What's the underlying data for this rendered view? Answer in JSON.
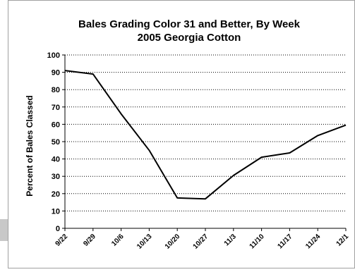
{
  "chart_data": {
    "type": "line",
    "title_line1": "Bales Grading Color 31 and Better, By Week",
    "title_line2": "2005 Georgia Cotton",
    "xlabel": "",
    "ylabel": "Percent of Bales Classed",
    "categories": [
      "9/22",
      "9/29",
      "10/6",
      "10/13",
      "10/20",
      "10/27",
      "11/3",
      "11/10",
      "11/17",
      "11/24",
      "12/1"
    ],
    "series": [
      {
        "values": [
          91,
          89,
          66,
          45,
          17.5,
          17,
          30.5,
          41,
          43.5,
          53.5,
          59.5
        ]
      }
    ],
    "ylim": [
      0,
      100
    ],
    "yticks": [
      "0",
      "10",
      "20",
      "30",
      "40",
      "50",
      "60",
      "70",
      "80",
      "90",
      "100"
    ],
    "grid": "horizontal-dotted",
    "legend": "none",
    "colors": {
      "line": "#000000",
      "grid": "#000000",
      "frame": "#a0a0a0",
      "left_tab": "#c8c8c8"
    }
  }
}
